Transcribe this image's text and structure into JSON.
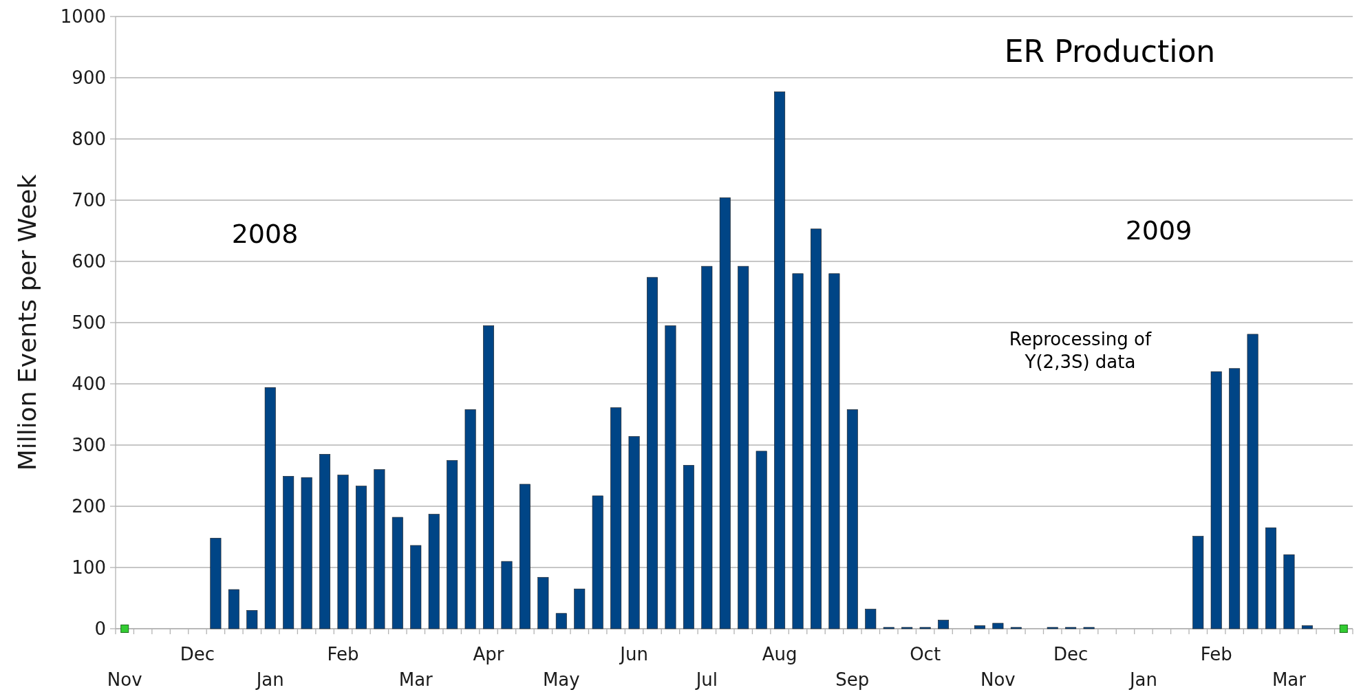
{
  "chart_data": {
    "type": "bar",
    "title": "ER Production",
    "ylabel": "Million Events per Week",
    "annotations": [
      "2008",
      "2009",
      "Reprocessing of\nY(2,3S) data"
    ],
    "categories": [
      "Nov",
      null,
      null,
      null,
      "Dec",
      null,
      null,
      null,
      "Jan",
      null,
      null,
      null,
      "Feb",
      null,
      null,
      null,
      "Mar",
      null,
      null,
      null,
      "Apr",
      null,
      null,
      null,
      "May",
      null,
      null,
      null,
      "Jun",
      null,
      null,
      null,
      "Jul",
      null,
      null,
      null,
      "Aug",
      null,
      null,
      null,
      "Sep",
      null,
      null,
      null,
      "Oct",
      null,
      null,
      null,
      "Nov",
      null,
      null,
      null,
      "Dec",
      null,
      null,
      null,
      "Jan",
      null,
      null,
      null,
      "Feb",
      null,
      null,
      null,
      "Mar",
      null,
      null,
      null
    ],
    "ylim": [
      0,
      1000
    ],
    "yticks": [
      0,
      100,
      200,
      300,
      400,
      500,
      600,
      700,
      800,
      900,
      1000
    ],
    "grid": "y",
    "series": [
      {
        "color": "#004586",
        "values": [
          null,
          null,
          null,
          null,
          null,
          148,
          64,
          30,
          394,
          249,
          247,
          285,
          251,
          233,
          260,
          182,
          136,
          187,
          275,
          358,
          495,
          110,
          236,
          84,
          25,
          65,
          217,
          361,
          314,
          574,
          495,
          267,
          592,
          704,
          592,
          290,
          877,
          580,
          653,
          580,
          358,
          32,
          1,
          1,
          2,
          14,
          null,
          5,
          9,
          1,
          null,
          1,
          1,
          1,
          null,
          null,
          null,
          null,
          null,
          151,
          420,
          425,
          481,
          165,
          121,
          5,
          null,
          null
        ]
      },
      {
        "type": "scatter",
        "color": "#33cc33",
        "marker": "square",
        "values": [
          0,
          null,
          null,
          null,
          null,
          null,
          null,
          null,
          null,
          null,
          null,
          null,
          null,
          null,
          null,
          null,
          null,
          null,
          null,
          null,
          null,
          null,
          null,
          null,
          null,
          null,
          null,
          null,
          null,
          null,
          null,
          null,
          null,
          null,
          null,
          null,
          null,
          null,
          null,
          null,
          null,
          null,
          null,
          null,
          null,
          null,
          null,
          null,
          null,
          null,
          null,
          null,
          null,
          null,
          null,
          null,
          null,
          null,
          null,
          null,
          null,
          null,
          null,
          null,
          null,
          null,
          null,
          0
        ]
      }
    ]
  }
}
